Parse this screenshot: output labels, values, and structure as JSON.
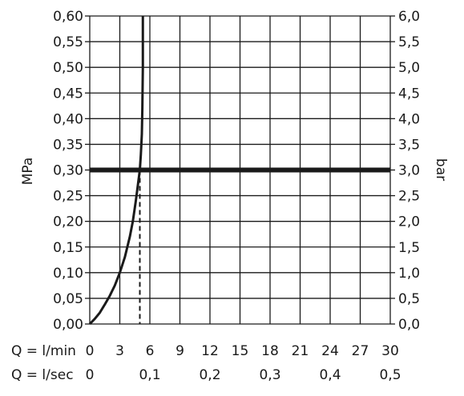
{
  "chart_data": {
    "type": "line",
    "xlabel_primary": "Q = l/min",
    "xlabel_secondary": "Q = l/sec",
    "ylabel_left": "MPa",
    "ylabel_right": "bar",
    "x_ticks_lmin": [
      "0",
      "3",
      "6",
      "9",
      "12",
      "15",
      "18",
      "21",
      "24",
      "27",
      "30"
    ],
    "x_ticks_lsec": [
      "0",
      "0,1",
      "0,2",
      "0,3",
      "0,4",
      "0,5"
    ],
    "y_ticks_left": [
      "0,00",
      "0,05",
      "0,10",
      "0,15",
      "0,20",
      "0,25",
      "0,30",
      "0,35",
      "0,40",
      "0,45",
      "0,50",
      "0,55",
      "0,60"
    ],
    "y_ticks_right": [
      "0,0",
      "0,5",
      "1,0",
      "1,5",
      "2,0",
      "2,5",
      "3,0",
      "3,5",
      "4,0",
      "4,5",
      "5,0",
      "5,5",
      "6,0"
    ],
    "xlim": [
      0,
      30
    ],
    "ylim": [
      0,
      0.6
    ],
    "grid": true,
    "series": [
      {
        "x": [
          0,
          0.5,
          1,
          1.5,
          2,
          2.5,
          3,
          3.5,
          4,
          4.3,
          4.6,
          4.8,
          5.0,
          5.1,
          5.2,
          5.25,
          5.3,
          5.3
        ],
        "y": [
          0,
          0.01,
          0.022,
          0.038,
          0.055,
          0.075,
          0.1,
          0.13,
          0.17,
          0.2,
          0.24,
          0.27,
          0.3,
          0.33,
          0.37,
          0.42,
          0.5,
          0.6
        ],
        "color": "#1a1a1a"
      }
    ],
    "reference_line": {
      "y": 0.3,
      "color": "#1a1a1a"
    },
    "marker_line": {
      "x": 5.0,
      "y_to": 0.3,
      "style": "dashed"
    }
  }
}
